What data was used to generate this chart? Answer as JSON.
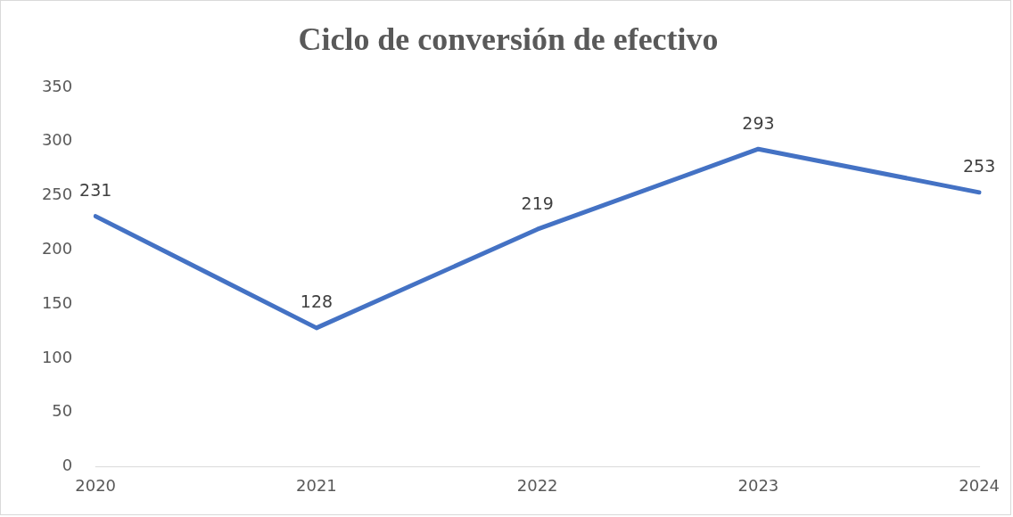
{
  "chart_data": {
    "type": "line",
    "title": "Ciclo de conversión de efectivo",
    "categories": [
      "2020",
      "2021",
      "2022",
      "2023",
      "2024"
    ],
    "values": [
      231,
      128,
      219,
      293,
      253
    ],
    "color": "#4472c4",
    "ylim": [
      0,
      350
    ],
    "yticks": [
      0,
      50,
      100,
      150,
      200,
      250,
      300,
      350
    ],
    "grid": false,
    "legend": false,
    "marker": "none",
    "line_style": "solid",
    "data_labels": true
  }
}
